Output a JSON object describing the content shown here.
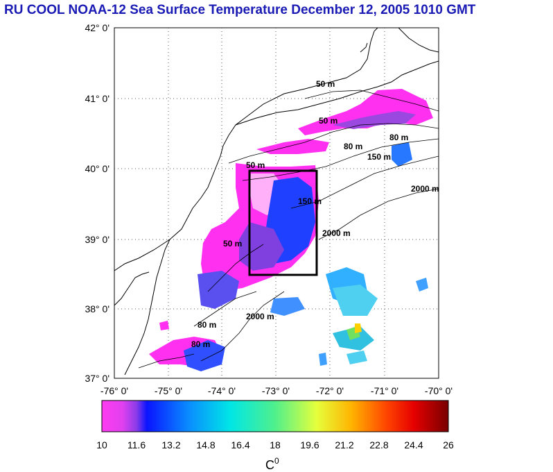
{
  "title": "RU COOL  NOAA-12 Sea Surface Temperature December 12, 2005 1010 GMT",
  "map": {
    "lat_labels": [
      "42° 0'",
      "41° 0'",
      "40° 0'",
      "39° 0'",
      "38° 0'",
      "37° 0'"
    ],
    "lon_labels": [
      "-76° 0'",
      "-75° 0'",
      "-74° 0'",
      "-73° 0'",
      "-72° 0'",
      "-71° 0'",
      "-70° 0'"
    ],
    "depth_labels": [
      "50 m",
      "50 m",
      "80 m",
      "80 m",
      "150 m",
      "150 m",
      "2000 m",
      "2000 m",
      "50 m",
      "50 m",
      "2000 m",
      "80 m",
      "80 m"
    ],
    "study_box_color": "#000000",
    "land_color": "#ffffff",
    "coast_color": "#000000"
  },
  "colorbar": {
    "ticks": [
      "10",
      "11.6",
      "13.2",
      "14.8",
      "16.4",
      "18",
      "19.6",
      "21.2",
      "22.8",
      "24.4",
      "26"
    ],
    "unit": "C",
    "unit_sup": "0",
    "colors": [
      "#ff3cf0",
      "#b050e0",
      "#0a14ff",
      "#0a8cff",
      "#00e6e6",
      "#5af08c",
      "#e6ff3c",
      "#ffb400",
      "#ff4600",
      "#d20000",
      "#780000"
    ]
  }
}
